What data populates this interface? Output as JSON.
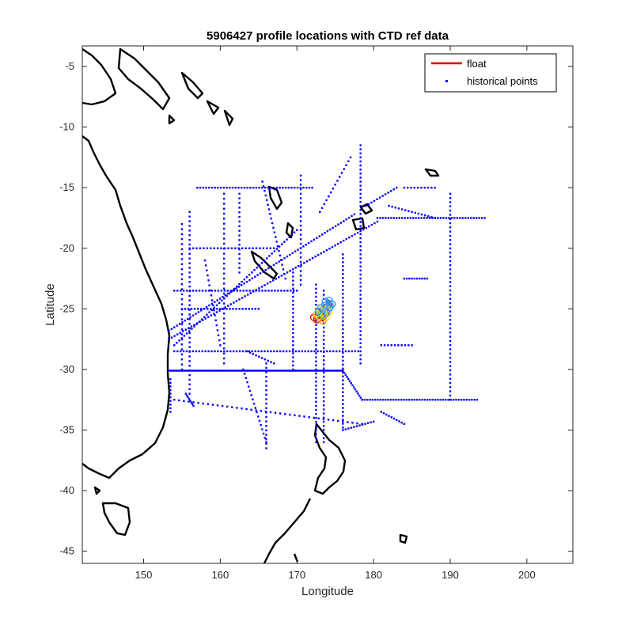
{
  "chart_data": {
    "type": "scatter",
    "title": "5906427 profile locations with CTD ref data",
    "xlabel": "Longitude",
    "ylabel": "Latitude",
    "xlim": [
      142,
      206
    ],
    "ylim": [
      -46,
      -3.3
    ],
    "xticks": [
      150,
      160,
      170,
      180,
      190,
      200
    ],
    "yticks": [
      -5,
      -10,
      -15,
      -20,
      -25,
      -30,
      -35,
      -40,
      -45
    ],
    "grid": false,
    "legend_position": "top-right",
    "legend": [
      {
        "name": "float",
        "color": "#e00000",
        "marker": "line"
      },
      {
        "name": "historical points",
        "color": "#0000ff",
        "marker": "dot"
      }
    ],
    "series": [
      {
        "name": "float",
        "color": "#e00000",
        "x": [
          172.2,
          172.6,
          173.1,
          173.5,
          173.0,
          172.5,
          172.9,
          173.4,
          173.8,
          174.2,
          173.9,
          173.4,
          173.0,
          172.6,
          172.9,
          173.5,
          174.0,
          174.4,
          174.1,
          173.6,
          173.1,
          172.8,
          173.3,
          173.9,
          174.3,
          174.6,
          174.2,
          173.7
        ],
        "y": [
          -25.7,
          -25.9,
          -25.6,
          -25.4,
          -25.2,
          -25.5,
          -25.8,
          -26.0,
          -25.7,
          -25.3,
          -25.0,
          -24.8,
          -25.1,
          -25.4,
          -25.6,
          -25.5,
          -25.1,
          -24.7,
          -24.5,
          -24.7,
          -24.9,
          -25.2,
          -25.5,
          -25.3,
          -24.9,
          -24.6,
          -24.3,
          -24.4
        ]
      },
      {
        "name": "historical points",
        "color": "#0000ff",
        "segments": [
          {
            "from": [
              153.3,
              -30.1
            ],
            "to": [
              176.0,
              -30.1
            ],
            "n": 120
          },
          {
            "from": [
              176.0,
              -30.1
            ],
            "to": [
              178.5,
              -32.5
            ],
            "n": 15
          },
          {
            "from": [
              178.5,
              -32.5
            ],
            "to": [
              193.5,
              -32.5
            ],
            "n": 45
          },
          {
            "from": [
              153.3,
              -26.8
            ],
            "to": [
              177.5,
              -17.2
            ],
            "n": 70
          },
          {
            "from": [
              153.3,
              -27.5
            ],
            "to": [
              180.5,
              -17.8
            ],
            "n": 75
          },
          {
            "from": [
              154.0,
              -28.0
            ],
            "to": [
              170.0,
              -18.5
            ],
            "n": 50
          },
          {
            "from": [
              180.5,
              -17.5
            ],
            "to": [
              194.5,
              -17.5
            ],
            "n": 40
          },
          {
            "from": [
              190.0,
              -15.5
            ],
            "to": [
              190.0,
              -32.5
            ],
            "n": 50
          },
          {
            "from": [
              176.0,
              -20.5
            ],
            "to": [
              176.0,
              -34.8
            ],
            "n": 45
          },
          {
            "from": [
              178.3,
              -11.5
            ],
            "to": [
              178.3,
              -29.5
            ],
            "n": 55
          },
          {
            "from": [
              172.5,
              -23.0
            ],
            "to": [
              172.5,
              -36.0
            ],
            "n": 40
          },
          {
            "from": [
              173.5,
              -23.5
            ],
            "to": [
              173.5,
              -36.0
            ],
            "n": 38
          },
          {
            "from": [
              169.5,
              -22.0
            ],
            "to": [
              169.5,
              -30.0
            ],
            "n": 25
          },
          {
            "from": [
              154.0,
              -28.5
            ],
            "to": [
              178.0,
              -28.5
            ],
            "n": 60
          },
          {
            "from": [
              157.0,
              -15.0
            ],
            "to": [
              172.0,
              -15.0
            ],
            "n": 40
          },
          {
            "from": [
              154.0,
              -23.5
            ],
            "to": [
              170.0,
              -23.5
            ],
            "n": 40
          },
          {
            "from": [
              156.0,
              -20.0
            ],
            "to": [
              167.0,
              -20.0
            ],
            "n": 25
          },
          {
            "from": [
              155.0,
              -25.0
            ],
            "to": [
              165.0,
              -25.0
            ],
            "n": 25
          },
          {
            "from": [
              166.0,
              -29.5
            ],
            "to": [
              166.0,
              -36.5
            ],
            "n": 20
          },
          {
            "from": [
              163.0,
              -30.0
            ],
            "to": [
              166.0,
              -36.0
            ],
            "n": 18
          },
          {
            "from": [
              154.0,
              -32.5
            ],
            "to": [
              178.5,
              -34.5
            ],
            "n": 40
          },
          {
            "from": [
              153.5,
              -30.8
            ],
            "to": [
              153.5,
              -33.5
            ],
            "n": 10
          },
          {
            "from": [
              170.5,
              -14.0
            ],
            "to": [
              170.5,
              -23.0
            ],
            "n": 25
          },
          {
            "from": [
              165.5,
              -14.5
            ],
            "to": [
              168.5,
              -22.5
            ],
            "n": 22
          },
          {
            "from": [
              160.5,
              -15.5
            ],
            "to": [
              160.5,
              -29.5
            ],
            "n": 35
          },
          {
            "from": [
              156.0,
              -17.0
            ],
            "to": [
              156.0,
              -32.0
            ],
            "n": 40
          },
          {
            "from": [
              155.0,
              -18.0
            ],
            "to": [
              155.0,
              -30.0
            ],
            "n": 30
          },
          {
            "from": [
              162.5,
              -15.5
            ],
            "to": [
              162.5,
              -22.0
            ],
            "n": 18
          },
          {
            "from": [
              158.0,
              -21.0
            ],
            "to": [
              160.0,
              -28.0
            ],
            "n": 18
          },
          {
            "from": [
              182.0,
              -16.5
            ],
            "to": [
              188.0,
              -17.5
            ],
            "n": 15
          },
          {
            "from": [
              184.0,
              -22.5
            ],
            "to": [
              187.0,
              -22.5
            ],
            "n": 10
          },
          {
            "from": [
              181.0,
              -33.5
            ],
            "to": [
              184.0,
              -34.5
            ],
            "n": 10
          },
          {
            "from": [
              176.0,
              -35.0
            ],
            "to": [
              180.0,
              -34.3
            ],
            "n": 12
          },
          {
            "from": [
              173.0,
              -17.0
            ],
            "to": [
              177.0,
              -12.5
            ],
            "n": 15
          },
          {
            "from": [
              179.0,
              -16.5
            ],
            "to": [
              183.0,
              -15.0
            ],
            "n": 12
          },
          {
            "from": [
              184.0,
              -15.0
            ],
            "to": [
              188.0,
              -15.0
            ],
            "n": 10
          },
          {
            "from": [
              181.0,
              -28.0
            ],
            "to": [
              185.0,
              -28.0
            ],
            "n": 10
          },
          {
            "from": [
              155.5,
              -32.0
            ],
            "to": [
              156.5,
              -33.0
            ],
            "n": 8
          },
          {
            "from": [
              163.5,
              -28.5
            ],
            "to": [
              167.0,
              -29.5
            ],
            "n": 10
          }
        ]
      }
    ]
  }
}
